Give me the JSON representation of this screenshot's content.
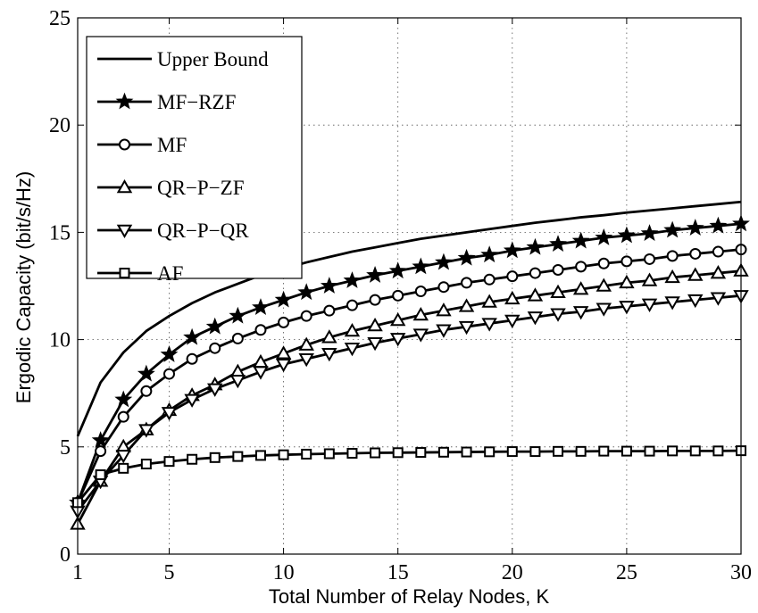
{
  "chart_data": {
    "type": "line",
    "title": "",
    "xlabel": "Total Number of Relay Nodes, K",
    "ylabel": "Ergodic Capacity (bit/s/Hz)",
    "xlim": [
      1,
      30
    ],
    "ylim": [
      0,
      25
    ],
    "xticks": [
      1,
      5,
      10,
      15,
      20,
      25,
      30
    ],
    "yticks": [
      0,
      5,
      10,
      15,
      20,
      25
    ],
    "grid": true,
    "legend_position": "top-left",
    "x": [
      1,
      2,
      3,
      4,
      5,
      6,
      7,
      8,
      9,
      10,
      11,
      12,
      13,
      14,
      15,
      16,
      17,
      18,
      19,
      20,
      21,
      22,
      23,
      24,
      25,
      26,
      27,
      28,
      29,
      30
    ],
    "series": [
      {
        "name": "Upper Bound",
        "marker": "none",
        "values": [
          5.5,
          8.0,
          9.4,
          10.4,
          11.1,
          11.7,
          12.2,
          12.6,
          13.0,
          13.3,
          13.6,
          13.85,
          14.1,
          14.3,
          14.5,
          14.7,
          14.85,
          15.0,
          15.15,
          15.3,
          15.45,
          15.57,
          15.7,
          15.8,
          15.92,
          16.02,
          16.12,
          16.22,
          16.32,
          16.42
        ]
      },
      {
        "name": "MF−RZF",
        "marker": "star",
        "values": [
          2.4,
          5.3,
          7.2,
          8.4,
          9.3,
          10.1,
          10.6,
          11.1,
          11.5,
          11.85,
          12.2,
          12.5,
          12.75,
          13.0,
          13.2,
          13.4,
          13.6,
          13.8,
          13.95,
          14.15,
          14.3,
          14.45,
          14.6,
          14.75,
          14.85,
          14.95,
          15.1,
          15.2,
          15.3,
          15.4
        ]
      },
      {
        "name": "MF",
        "marker": "circle",
        "values": [
          2.4,
          4.8,
          6.4,
          7.6,
          8.4,
          9.1,
          9.6,
          10.05,
          10.45,
          10.8,
          11.1,
          11.35,
          11.6,
          11.85,
          12.05,
          12.25,
          12.45,
          12.65,
          12.8,
          12.95,
          13.1,
          13.25,
          13.4,
          13.55,
          13.65,
          13.75,
          13.9,
          14.0,
          14.1,
          14.2
        ]
      },
      {
        "name": "QR−P−ZF",
        "marker": "triangle-up",
        "values": [
          1.4,
          3.4,
          5.0,
          5.8,
          6.7,
          7.4,
          7.9,
          8.5,
          8.95,
          9.35,
          9.75,
          10.1,
          10.4,
          10.65,
          10.9,
          11.15,
          11.35,
          11.55,
          11.75,
          11.9,
          12.05,
          12.2,
          12.35,
          12.5,
          12.65,
          12.75,
          12.9,
          13.0,
          13.1,
          13.2
        ]
      },
      {
        "name": "QR−P−QR",
        "marker": "triangle-down",
        "values": [
          2.0,
          3.4,
          4.6,
          5.8,
          6.6,
          7.2,
          7.7,
          8.1,
          8.5,
          8.85,
          9.1,
          9.35,
          9.6,
          9.85,
          10.05,
          10.25,
          10.45,
          10.6,
          10.75,
          10.9,
          11.05,
          11.2,
          11.3,
          11.45,
          11.55,
          11.65,
          11.75,
          11.85,
          11.95,
          12.05
        ]
      },
      {
        "name": "AF",
        "marker": "square",
        "values": [
          2.4,
          3.7,
          4.0,
          4.2,
          4.32,
          4.42,
          4.5,
          4.55,
          4.6,
          4.63,
          4.66,
          4.68,
          4.7,
          4.72,
          4.73,
          4.74,
          4.75,
          4.76,
          4.77,
          4.78,
          4.78,
          4.79,
          4.79,
          4.8,
          4.8,
          4.8,
          4.81,
          4.81,
          4.81,
          4.82
        ]
      }
    ]
  }
}
